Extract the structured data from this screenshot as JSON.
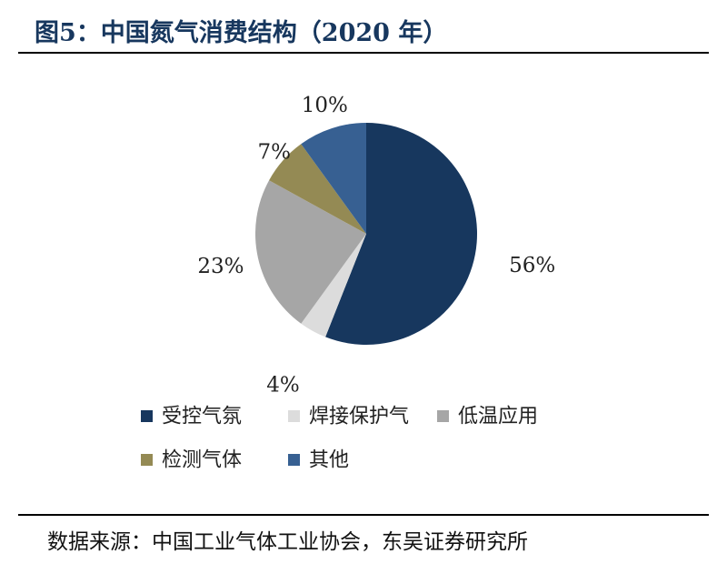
{
  "figure_title": "图5：中国氮气消费结构（2020 年）",
  "source_note": "数据来源：中国工业气体工业协会，东吴证券研究所",
  "chart_data": {
    "type": "pie",
    "title": "",
    "slices": [
      {
        "label": "受控气氛",
        "value": 56,
        "value_label": "56%",
        "color": "#17375e"
      },
      {
        "label": "焊接保护气",
        "value": 4,
        "value_label": "4%",
        "color": "#dcdcdc"
      },
      {
        "label": "低温应用",
        "value": 23,
        "value_label": "23%",
        "color": "#a6a6a6"
      },
      {
        "label": "检测气体",
        "value": 7,
        "value_label": "7%",
        "color": "#948a54"
      },
      {
        "label": "其他",
        "value": 10,
        "value_label": "10%",
        "color": "#376092"
      }
    ],
    "legend_position": "bottom"
  }
}
